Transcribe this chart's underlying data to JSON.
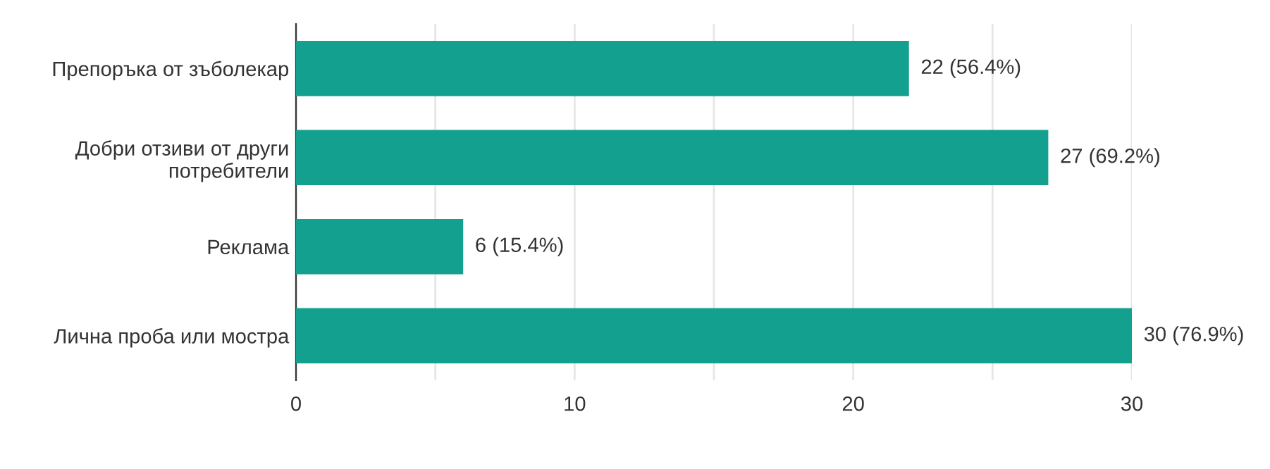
{
  "chart_data": {
    "type": "bar",
    "orientation": "horizontal",
    "categories": [
      "Препоръка от зъболекар",
      "Добри отзиви от други\nпотребители",
      "Реклама",
      "Лична проба или мостра"
    ],
    "values": [
      22,
      27,
      6,
      30
    ],
    "value_labels": [
      "22 (56.4%)",
      "27 (69.2%)",
      "6 (15.4%)",
      "30 (76.9%)"
    ],
    "color": "#14a08e",
    "xlim": [
      0,
      30
    ],
    "xticks": [
      0,
      {
        "value": 5,
        "label": null
      },
      10,
      {
        "value": 15,
        "label": null
      },
      20,
      {
        "value": 25,
        "label": null
      },
      30
    ],
    "grid": "x",
    "legend": false
  }
}
